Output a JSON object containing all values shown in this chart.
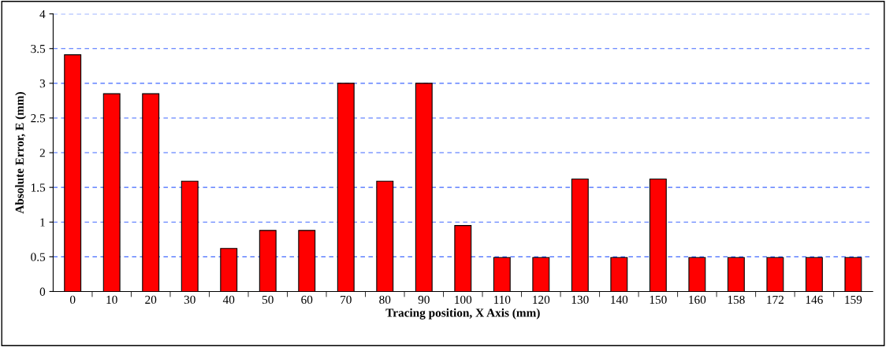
{
  "chart_data": {
    "type": "bar",
    "xlabel": "Tracing position, X Axis (mm)",
    "ylabel": "Absolute Error, E (mm)",
    "categories": [
      "0",
      "10",
      "20",
      "30",
      "40",
      "50",
      "60",
      "70",
      "80",
      "90",
      "100",
      "110",
      "120",
      "130",
      "140",
      "150",
      "160",
      "158",
      "172",
      "146",
      "159"
    ],
    "values": [
      3.41,
      2.85,
      2.85,
      1.59,
      0.62,
      0.88,
      0.88,
      3.0,
      1.59,
      3.0,
      0.95,
      0.49,
      0.49,
      1.62,
      0.49,
      1.62,
      0.49,
      0.49,
      0.49,
      0.49,
      0.49
    ],
    "color": "#ff0000",
    "ylim": [
      0,
      4
    ],
    "yticks": [
      0,
      0.5,
      1,
      1.5,
      2,
      2.5,
      3,
      3.5,
      4
    ],
    "grid": "y",
    "legend": false
  }
}
